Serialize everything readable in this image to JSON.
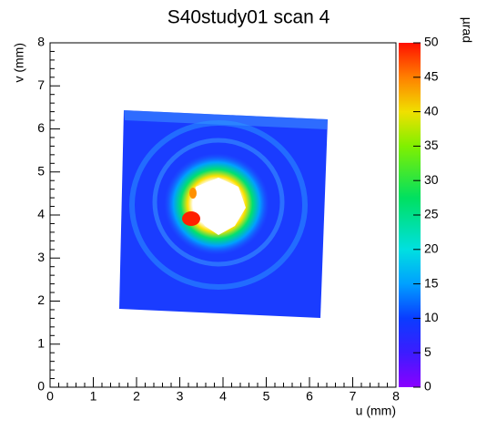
{
  "chart_data": {
    "type": "heatmap",
    "title": "S40study01 scan 4",
    "x_label": "u (mm)",
    "y_label": "v (mm)",
    "z_label": "µrad",
    "xlim": [
      0,
      8
    ],
    "xticks": [
      0,
      1,
      2,
      3,
      4,
      5,
      6,
      7,
      8
    ],
    "ylim": [
      0,
      8
    ],
    "yticks": [
      0,
      1,
      2,
      3,
      4,
      5,
      6,
      7,
      8
    ],
    "zlim": [
      0,
      50
    ],
    "zticks": [
      0,
      5,
      10,
      15,
      20,
      25,
      30,
      35,
      40,
      45,
      50
    ]
  }
}
